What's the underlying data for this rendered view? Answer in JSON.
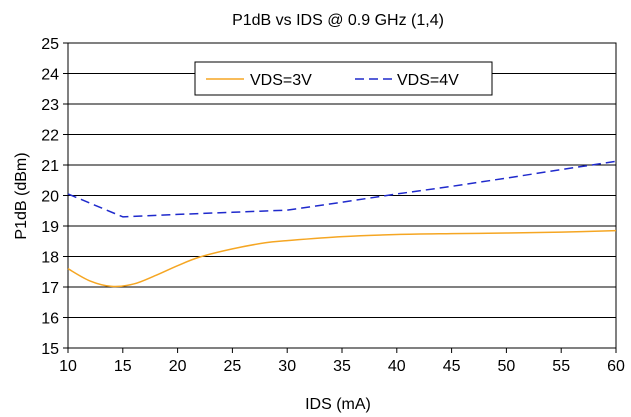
{
  "chart_data": {
    "type": "line",
    "title": "P1dB vs IDS @ 0.9 GHz (1,4)",
    "xlabel": "IDS (mA)",
    "ylabel": "P1dB (dBm)",
    "xlim": [
      10,
      60
    ],
    "ylim": [
      15,
      25
    ],
    "xticks": [
      "10",
      "15",
      "20",
      "25",
      "30",
      "35",
      "40",
      "45",
      "50",
      "55",
      "60"
    ],
    "yticks": [
      "15",
      "16",
      "17",
      "18",
      "19",
      "20",
      "21",
      "22",
      "23",
      "24",
      "25"
    ],
    "grid": "horizontal",
    "legend_position": "top-center",
    "series": [
      {
        "name": "VDS=3V",
        "color": "#f5a623",
        "style": "solid",
        "smooth": true,
        "points": [
          [
            10,
            17.6
          ],
          [
            12,
            17.2
          ],
          [
            14,
            17.02
          ],
          [
            16,
            17.1
          ],
          [
            18,
            17.38
          ],
          [
            20,
            17.7
          ],
          [
            22,
            17.98
          ],
          [
            25,
            18.25
          ],
          [
            28,
            18.45
          ],
          [
            30,
            18.52
          ],
          [
            35,
            18.65
          ],
          [
            40,
            18.72
          ],
          [
            45,
            18.75
          ],
          [
            50,
            18.77
          ],
          [
            55,
            18.8
          ],
          [
            60,
            18.85
          ]
        ]
      },
      {
        "name": "VDS=4V",
        "color": "#1f2acc",
        "style": "dashed",
        "smooth": false,
        "points": [
          [
            10,
            20.05
          ],
          [
            15,
            19.3
          ],
          [
            20,
            19.38
          ],
          [
            25,
            19.45
          ],
          [
            30,
            19.52
          ],
          [
            35,
            19.78
          ],
          [
            40,
            20.05
          ],
          [
            45,
            20.3
          ],
          [
            50,
            20.57
          ],
          [
            55,
            20.85
          ],
          [
            60,
            21.12
          ]
        ]
      }
    ]
  }
}
